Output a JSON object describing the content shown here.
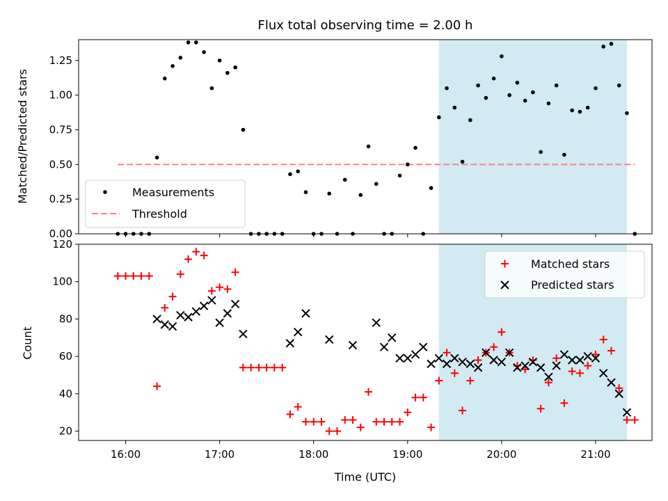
{
  "figure": {
    "title": "Flux total observing time = 2.00 h",
    "xlabel": "Time (UTC)",
    "x_ticks": [
      "16:00",
      "17:00",
      "18:00",
      "19:00",
      "20:00",
      "21:00"
    ],
    "highlight_color": "#add8e6",
    "highlight_range": [
      "19:20",
      "21:20"
    ]
  },
  "chart_data": [
    {
      "type": "scatter",
      "ylabel": "Matched/Predicted stars",
      "ylim": [
        0,
        1.4
      ],
      "y_ticks": [
        "0.00",
        "0.25",
        "0.50",
        "0.75",
        "1.00",
        "1.25"
      ],
      "legend": {
        "position": "lower-left"
      },
      "threshold": {
        "name": "Threshold",
        "value": 0.5,
        "x_range": [
          "15:55",
          "21:25"
        ],
        "color": "#ff7f7f"
      },
      "series": [
        {
          "name": "Measurements",
          "color": "#000000",
          "marker": "dot",
          "x": [
            "15:55",
            "16:00",
            "16:05",
            "16:10",
            "16:15",
            "16:20",
            "16:25",
            "16:30",
            "16:35",
            "16:40",
            "16:45",
            "16:50",
            "16:55",
            "17:00",
            "17:05",
            "17:10",
            "17:15",
            "17:20",
            "17:25",
            "17:30",
            "17:35",
            "17:40",
            "17:45",
            "17:50",
            "17:55",
            "18:00",
            "18:05",
            "18:10",
            "18:15",
            "18:20",
            "18:25",
            "18:30",
            "18:35",
            "18:40",
            "18:45",
            "18:50",
            "18:55",
            "19:00",
            "19:05",
            "19:10",
            "19:15",
            "19:20",
            "19:25",
            "19:30",
            "19:35",
            "19:40",
            "19:45",
            "19:50",
            "19:55",
            "20:00",
            "20:05",
            "20:10",
            "20:15",
            "20:20",
            "20:25",
            "20:30",
            "20:35",
            "20:40",
            "20:45",
            "20:50",
            "20:55",
            "21:00",
            "21:05",
            "21:10",
            "21:15",
            "21:20",
            "21:25"
          ],
          "y": [
            0,
            0,
            0,
            0,
            0,
            0.55,
            1.12,
            1.21,
            1.27,
            1.38,
            1.38,
            1.31,
            1.05,
            1.25,
            1.16,
            1.2,
            0.75,
            0,
            0,
            0,
            0,
            0,
            0.43,
            0.45,
            0.3,
            0,
            0,
            0.29,
            0,
            0.39,
            0,
            0.28,
            0.63,
            0.36,
            0,
            0,
            0.42,
            0.5,
            0.62,
            0,
            0.33,
            0.84,
            1.05,
            0.91,
            0.52,
            0.82,
            1.07,
            0.98,
            1.12,
            1.28,
            1.0,
            1.09,
            0.96,
            1.02,
            0.59,
            0.94,
            1.07,
            0.57,
            0.89,
            0.88,
            0.91,
            1.05,
            1.35,
            1.37,
            1.07,
            0.87,
            0
          ]
        }
      ]
    },
    {
      "type": "scatter",
      "ylabel": "Count",
      "ylim": [
        15,
        120
      ],
      "y_ticks": [
        "20",
        "40",
        "60",
        "80",
        "100",
        "120"
      ],
      "legend": {
        "position": "upper-right"
      },
      "series": [
        {
          "name": "Matched stars",
          "color": "#ff0000",
          "marker": "plus",
          "x": [
            "15:55",
            "16:00",
            "16:05",
            "16:10",
            "16:15",
            "16:20",
            "16:25",
            "16:30",
            "16:35",
            "16:40",
            "16:45",
            "16:50",
            "16:55",
            "17:00",
            "17:05",
            "17:10",
            "17:15",
            "17:20",
            "17:25",
            "17:30",
            "17:35",
            "17:40",
            "17:45",
            "17:50",
            "17:55",
            "18:00",
            "18:05",
            "18:10",
            "18:15",
            "18:20",
            "18:25",
            "18:30",
            "18:35",
            "18:40",
            "18:45",
            "18:50",
            "18:55",
            "19:00",
            "19:05",
            "19:10",
            "19:15",
            "19:20",
            "19:25",
            "19:30",
            "19:35",
            "19:40",
            "19:45",
            "19:50",
            "19:55",
            "20:00",
            "20:05",
            "20:10",
            "20:15",
            "20:20",
            "20:25",
            "20:30",
            "20:35",
            "20:40",
            "20:45",
            "20:50",
            "20:55",
            "21:00",
            "21:05",
            "21:10",
            "21:15",
            "21:20",
            "21:25"
          ],
          "y": [
            103,
            103,
            103,
            103,
            103,
            44,
            86,
            92,
            104,
            112,
            116,
            114,
            95,
            97,
            96,
            105,
            54,
            54,
            54,
            54,
            54,
            54,
            29,
            33,
            25,
            25,
            25,
            20,
            20,
            26,
            26,
            22,
            41,
            25,
            25,
            25,
            25,
            30,
            38,
            38,
            22,
            47,
            62,
            51,
            31,
            47,
            58,
            62,
            65,
            73,
            62,
            55,
            53,
            58,
            32,
            46,
            59,
            35,
            52,
            51,
            55,
            61,
            69,
            63,
            43,
            26,
            26
          ]
        },
        {
          "name": "Predicted stars",
          "color": "#000000",
          "marker": "x",
          "x": [
            "16:20",
            "16:25",
            "16:30",
            "16:35",
            "16:40",
            "16:45",
            "16:50",
            "16:55",
            "17:00",
            "17:05",
            "17:10",
            "17:15",
            "17:45",
            "17:50",
            "17:55",
            "18:10",
            "18:25",
            "18:40",
            "18:45",
            "18:50",
            "18:55",
            "19:00",
            "19:05",
            "19:10",
            "19:15",
            "19:20",
            "19:25",
            "19:30",
            "19:35",
            "19:40",
            "19:45",
            "19:50",
            "19:55",
            "20:00",
            "20:05",
            "20:10",
            "20:15",
            "20:20",
            "20:25",
            "20:30",
            "20:35",
            "20:40",
            "20:45",
            "20:50",
            "20:55",
            "21:00",
            "21:05",
            "21:10",
            "21:15",
            "21:20"
          ],
          "y": [
            80,
            77,
            76,
            82,
            81,
            84,
            87,
            90,
            78,
            83,
            88,
            72,
            67,
            73,
            83,
            69,
            66,
            78,
            65,
            70,
            59,
            59,
            61,
            65,
            56,
            59,
            56,
            59,
            57,
            56,
            54,
            62,
            58,
            57,
            62,
            54,
            55,
            57,
            54,
            49,
            55,
            61,
            58,
            58,
            60,
            59,
            51,
            46,
            40,
            30
          ]
        }
      ]
    }
  ]
}
